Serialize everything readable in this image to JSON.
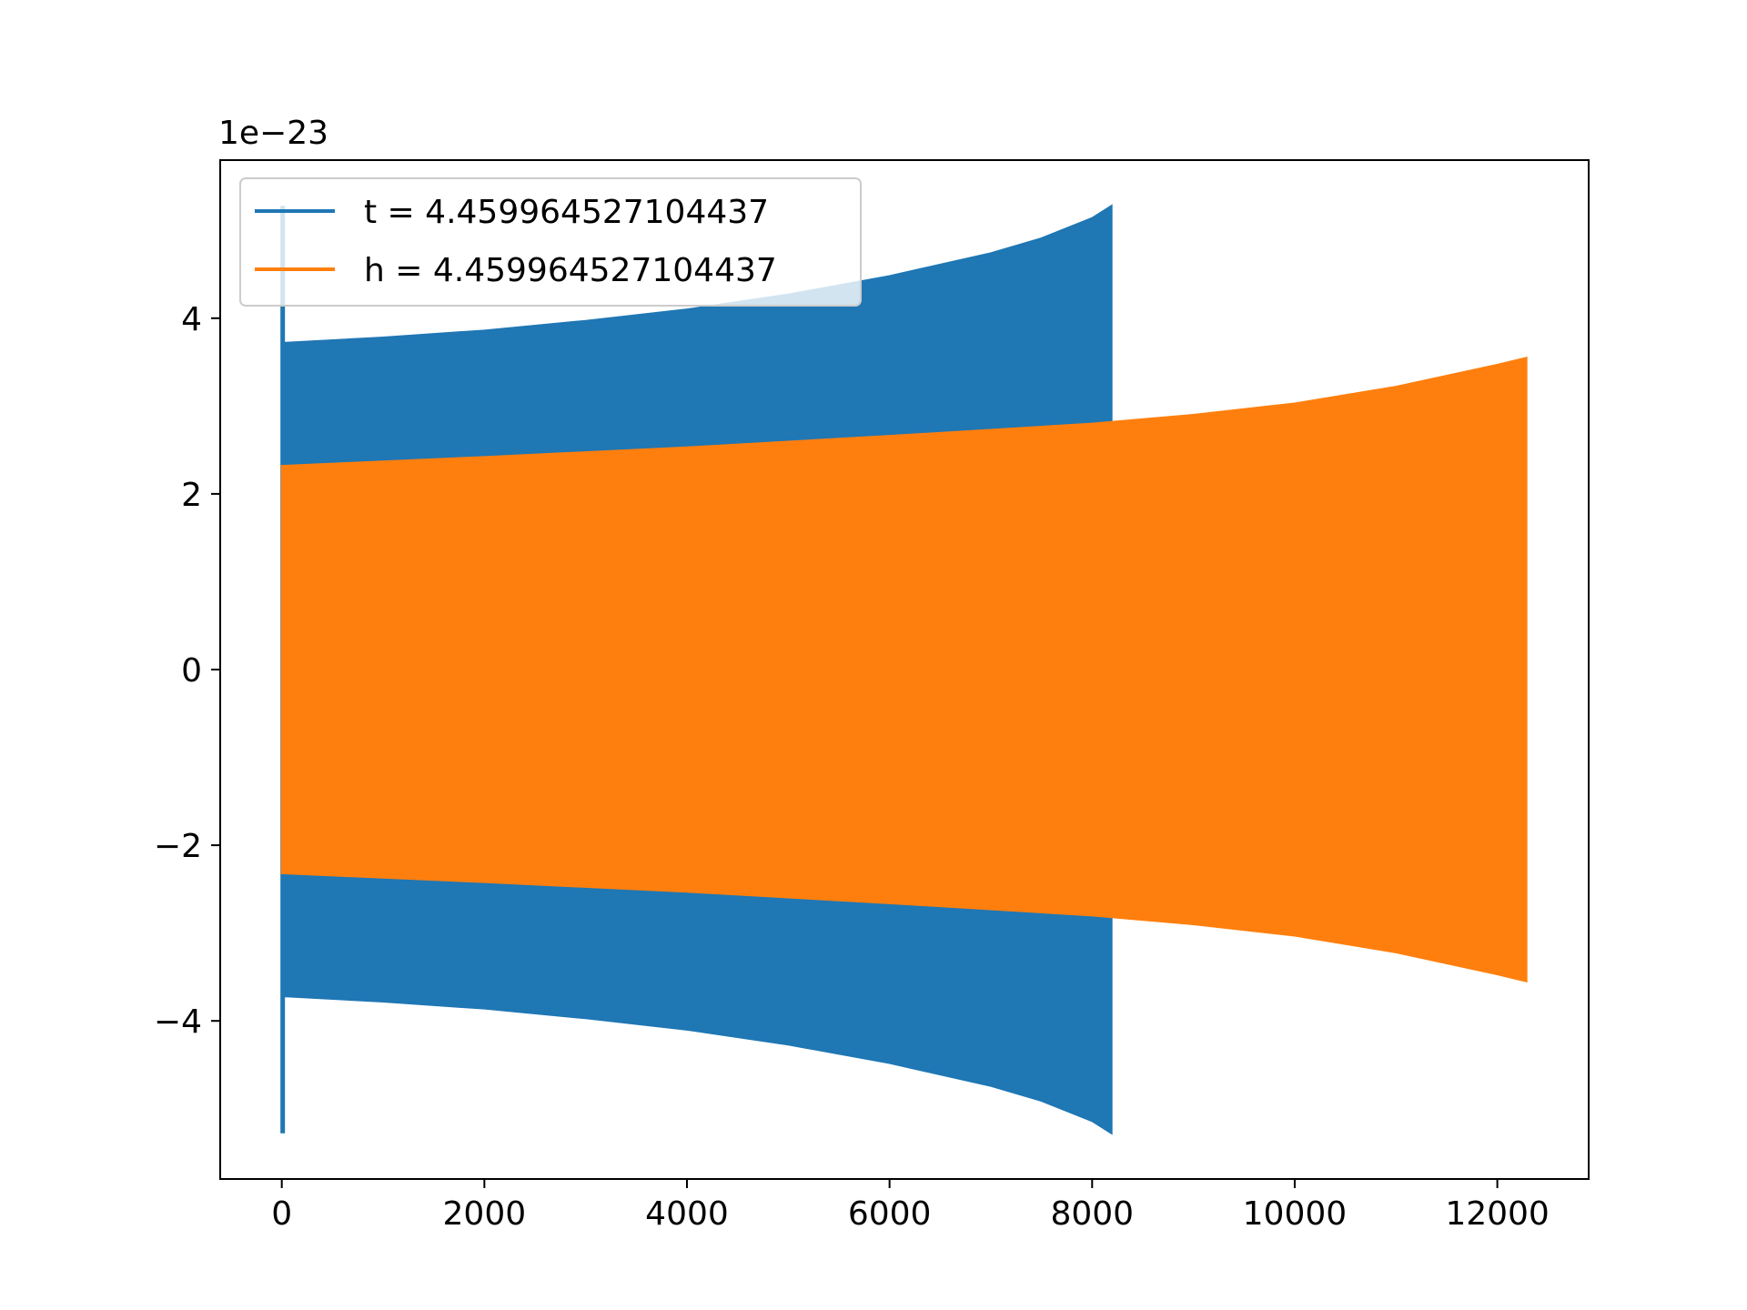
{
  "chart_data": {
    "type": "area",
    "title": "",
    "xlabel": "",
    "ylabel": "",
    "offset_text": "1e−23",
    "xlim": [
      -608,
      12902
    ],
    "ylim": [
      -5.8,
      5.8
    ],
    "x_ticks": [
      0,
      2000,
      4000,
      6000,
      8000,
      10000,
      12000
    ],
    "x_tick_labels": [
      "0",
      "2000",
      "4000",
      "6000",
      "8000",
      "10000",
      "12000"
    ],
    "y_ticks": [
      -4,
      -2,
      0,
      2,
      4
    ],
    "y_tick_labels": [
      "−4",
      "−2",
      "0",
      "2",
      "4"
    ],
    "grid": false,
    "legend_position": "upper-left",
    "colors": {
      "t": "#1f77b4",
      "h": "#ff7f0e"
    },
    "series": [
      {
        "name": "t = 4.459964527104437",
        "color": "#1f77b4",
        "description": "oscillating signal filled band (envelope shown)",
        "spike": {
          "x": 0,
          "max": 5.28,
          "min": -5.28
        },
        "envelope_x": [
          0,
          20,
          1000,
          2000,
          3000,
          4000,
          5000,
          6000,
          7000,
          7500,
          8000,
          8192
        ],
        "envelope_upper": [
          3.75,
          3.72,
          3.78,
          3.86,
          3.97,
          4.1,
          4.27,
          4.48,
          4.74,
          4.91,
          5.14,
          5.28
        ],
        "envelope_lower": [
          -3.75,
          -3.72,
          -3.78,
          -3.86,
          -3.97,
          -4.1,
          -4.27,
          -4.48,
          -4.74,
          -4.91,
          -5.14,
          -5.28
        ]
      },
      {
        "name": "h = 4.459964527104437",
        "color": "#ff7f0e",
        "description": "oscillating signal filled band (envelope shown)",
        "envelope_x": [
          0,
          20,
          2000,
          4000,
          6000,
          8000,
          9000,
          10000,
          11000,
          12000,
          12288
        ],
        "envelope_upper": [
          2.32,
          2.32,
          2.42,
          2.53,
          2.66,
          2.8,
          2.9,
          3.03,
          3.22,
          3.47,
          3.55
        ],
        "envelope_lower": [
          -2.32,
          -2.32,
          -2.42,
          -2.53,
          -2.66,
          -2.8,
          -2.9,
          -3.03,
          -3.22,
          -3.47,
          -3.55
        ]
      }
    ]
  }
}
